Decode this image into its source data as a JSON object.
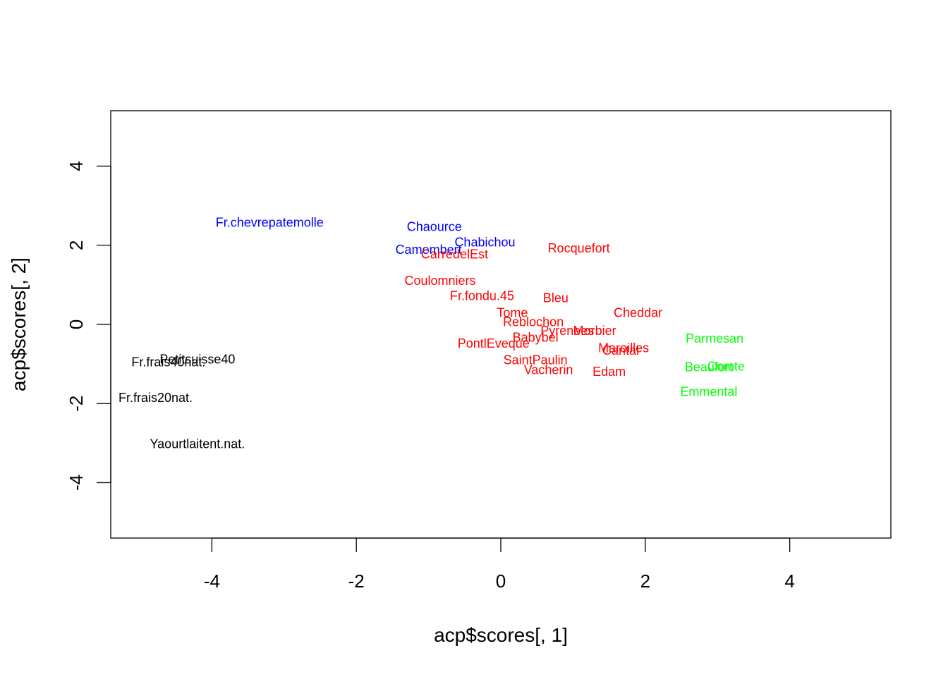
{
  "chart_data": {
    "type": "scatter",
    "title": "",
    "xlabel": "acp$scores[, 1]",
    "ylabel": "acp$scores[, 2]",
    "xlim": [
      -5.4,
      5.4
    ],
    "ylim": [
      -5.4,
      5.4
    ],
    "x_ticks": [
      -4,
      -2,
      0,
      2,
      4
    ],
    "y_ticks": [
      -4,
      -2,
      0,
      2,
      4
    ],
    "x_tick_labels": [
      "-4",
      "-2",
      "0",
      "2",
      "4"
    ],
    "y_tick_labels": [
      "-4",
      "-2",
      "0",
      "2",
      "4"
    ],
    "grid": false,
    "legend": "none",
    "colors": {
      "black": "#000000",
      "blue": "#0000ff",
      "red": "#ff0000",
      "green": "#00ff00"
    },
    "points": [
      {
        "label": "Fr.chevrepatemolle",
        "x": -3.2,
        "y": 2.55,
        "color": "blue"
      },
      {
        "label": "Chaource",
        "x": -0.92,
        "y": 2.45,
        "color": "blue"
      },
      {
        "label": "Chabichou",
        "x": -0.22,
        "y": 2.05,
        "color": "blue"
      },
      {
        "label": "Camembert",
        "x": -1.0,
        "y": 1.87,
        "color": "blue"
      },
      {
        "label": "CarredelEst",
        "x": -0.64,
        "y": 1.75,
        "color": "red"
      },
      {
        "label": "Rocquefort",
        "x": 1.08,
        "y": 1.9,
        "color": "red"
      },
      {
        "label": "Coulomniers",
        "x": -0.84,
        "y": 1.08,
        "color": "red"
      },
      {
        "label": "Fr.fondu.45",
        "x": -0.26,
        "y": 0.7,
        "color": "red"
      },
      {
        "label": "Bleu",
        "x": 0.76,
        "y": 0.65,
        "color": "red"
      },
      {
        "label": "Tome",
        "x": 0.16,
        "y": 0.27,
        "color": "red"
      },
      {
        "label": "Cheddar",
        "x": 1.9,
        "y": 0.27,
        "color": "red"
      },
      {
        "label": "Reblochon",
        "x": 0.45,
        "y": 0.04,
        "color": "red"
      },
      {
        "label": "Pyrenees",
        "x": 0.92,
        "y": -0.18,
        "color": "red"
      },
      {
        "label": "Morbier",
        "x": 1.3,
        "y": -0.18,
        "color": "red"
      },
      {
        "label": "Babybel",
        "x": 0.48,
        "y": -0.35,
        "color": "red"
      },
      {
        "label": "PontlEveque",
        "x": -0.1,
        "y": -0.5,
        "color": "red"
      },
      {
        "label": "Maroilles",
        "x": 1.7,
        "y": -0.62,
        "color": "red"
      },
      {
        "label": "Cantal",
        "x": 1.66,
        "y": -0.68,
        "color": "red"
      },
      {
        "label": "SaintPaulin",
        "x": 0.48,
        "y": -0.92,
        "color": "red"
      },
      {
        "label": "Vacherin",
        "x": 0.66,
        "y": -1.17,
        "color": "red"
      },
      {
        "label": "Edam",
        "x": 1.5,
        "y": -1.22,
        "color": "red"
      },
      {
        "label": "Parmesan",
        "x": 2.96,
        "y": -0.38,
        "color": "green"
      },
      {
        "label": "Beaufort",
        "x": 2.88,
        "y": -1.1,
        "color": "green"
      },
      {
        "label": "Comte",
        "x": 3.12,
        "y": -1.08,
        "color": "green"
      },
      {
        "label": "Emmental",
        "x": 2.88,
        "y": -1.72,
        "color": "green"
      },
      {
        "label": "Petitsuisse40",
        "x": -4.2,
        "y": -0.9,
        "color": "black"
      },
      {
        "label": "Fr.frais40nat.",
        "x": -4.6,
        "y": -0.98,
        "color": "black"
      },
      {
        "label": "Fr.frais20nat.",
        "x": -4.78,
        "y": -1.88,
        "color": "black"
      },
      {
        "label": "Yaourtlaitent.nat.",
        "x": -4.2,
        "y": -3.04,
        "color": "black"
      }
    ]
  }
}
